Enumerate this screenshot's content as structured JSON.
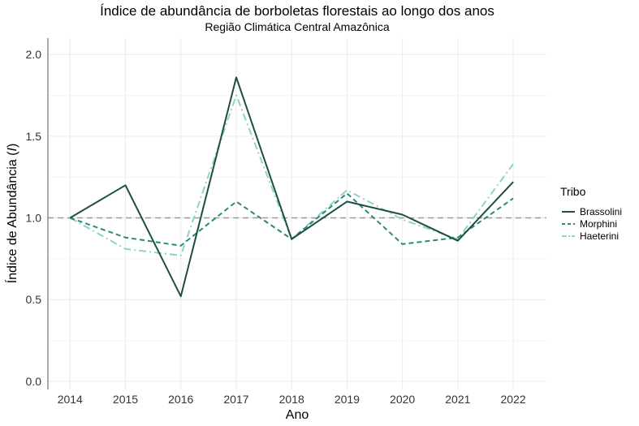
{
  "chart_data": {
    "type": "line",
    "title": "Índice de abundância de borboletas florestais ao longo dos anos",
    "subtitle": "Região Climática Central Amazônica",
    "xlabel": "Ano",
    "ylabel_prefix": "Índice de Abundância (",
    "ylabel_symbol": "I",
    "ylabel_suffix": ")",
    "x": [
      2014,
      2015,
      2016,
      2017,
      2018,
      2019,
      2020,
      2021,
      2022
    ],
    "x_tick_labels": [
      "2014",
      "2015",
      "2016",
      "2017",
      "2018",
      "2019",
      "2020",
      "2021",
      "2022"
    ],
    "ylim": [
      -0.05,
      2.1
    ],
    "y_ticks": [
      0.0,
      0.5,
      1.0,
      1.5,
      2.0
    ],
    "y_tick_labels": [
      "0.0",
      "0.5",
      "1.0",
      "1.5",
      "2.0"
    ],
    "reference_line": 1.0,
    "grid": true,
    "legend": {
      "title": "Tribo",
      "position": "right"
    },
    "series": [
      {
        "name": "Brassolini",
        "color": "#1e4d44",
        "dash": "solid",
        "values": [
          1.0,
          1.2,
          0.52,
          1.86,
          0.87,
          1.1,
          1.02,
          0.86,
          1.22
        ]
      },
      {
        "name": "Morphini",
        "color": "#2a8a7a",
        "dash": "dashed",
        "values": [
          1.0,
          0.88,
          0.83,
          1.1,
          0.87,
          1.15,
          0.84,
          0.88,
          1.12
        ]
      },
      {
        "name": "Haeterini",
        "color": "#8fd3c8",
        "dash": "dotdash",
        "values": [
          1.0,
          0.81,
          0.77,
          1.75,
          0.87,
          1.17,
          0.99,
          0.87,
          1.33
        ]
      }
    ]
  }
}
